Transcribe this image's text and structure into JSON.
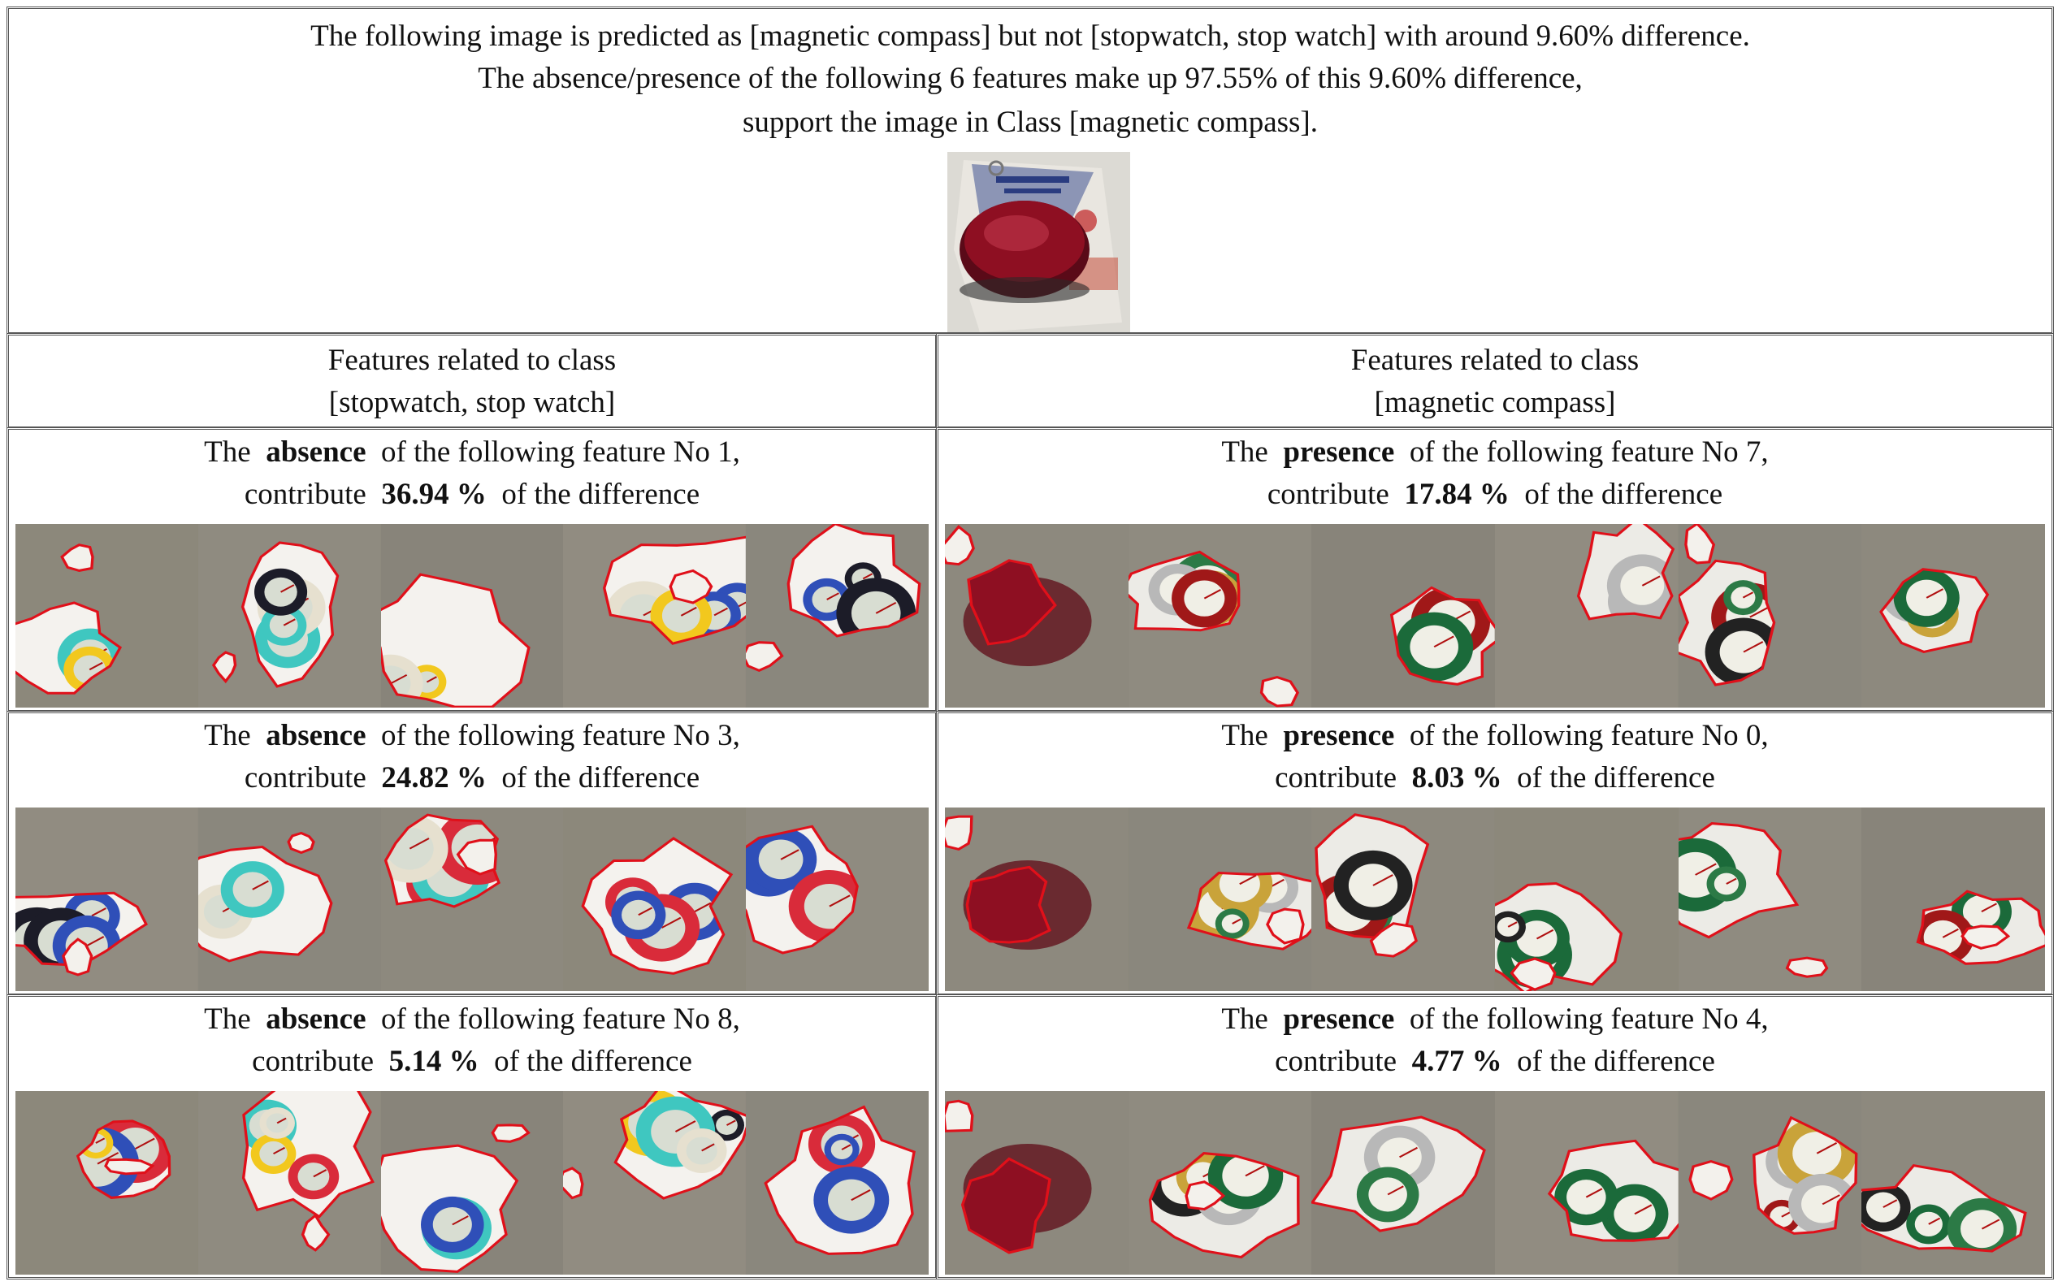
{
  "header": {
    "line1": "The following image is predicted as [magnetic compass] but not [stopwatch, stop watch] with around 9.60% difference.",
    "line2": "The absence/presence of the following 6 features make up 97.55% of this 9.60% difference,",
    "line3": "support the image in Class [magnetic compass]."
  },
  "columns": {
    "left": {
      "line1": "Features related to class",
      "line2": "[stopwatch, stop watch]"
    },
    "right": {
      "line1": "Features related to class",
      "line2": "[magnetic compass]"
    }
  },
  "common": {
    "the": "The",
    "of_following": "of the following feature No",
    "contribute": "contribute",
    "of_difference": "of the difference"
  },
  "rows": [
    {
      "left": {
        "kind": "absence",
        "feature_no": "1,",
        "percent": "36.94 %"
      },
      "right": {
        "kind": "presence",
        "feature_no": "7,",
        "percent": "17.84 %"
      }
    },
    {
      "left": {
        "kind": "absence",
        "feature_no": "3,",
        "percent": "24.82 %"
      },
      "right": {
        "kind": "presence",
        "feature_no": "0,",
        "percent": "8.03 %"
      }
    },
    {
      "left": {
        "kind": "absence",
        "feature_no": "8,",
        "percent": "5.14 %"
      },
      "right": {
        "kind": "presence",
        "feature_no": "4,",
        "percent": "4.77 %"
      }
    }
  ],
  "colors": {
    "outline": "#e0101a",
    "masked_bg": "#8a8679",
    "query_red": "#8e0f22"
  }
}
